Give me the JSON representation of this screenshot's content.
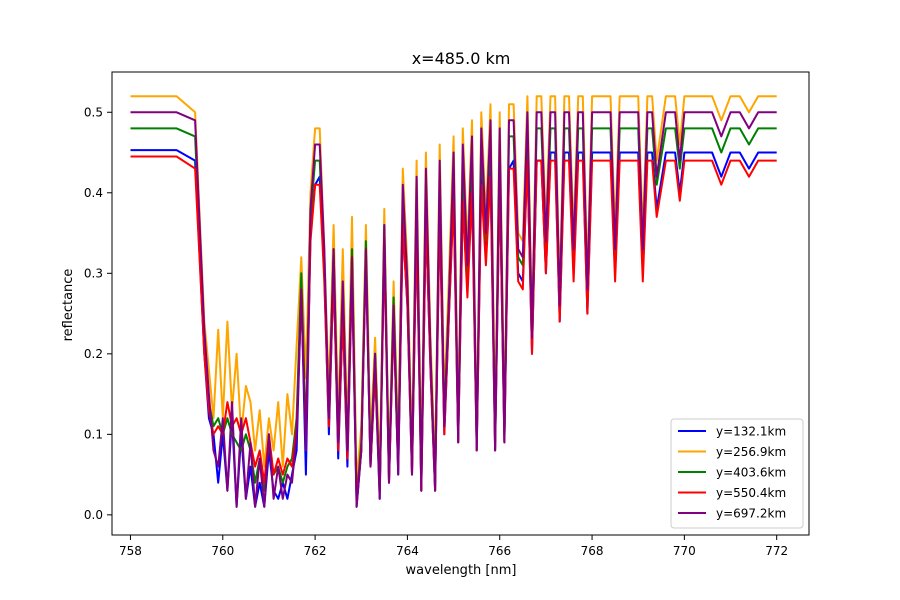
{
  "chart_data": {
    "type": "line",
    "title": "x=485.0 km",
    "xlabel": "wavelength [nm]",
    "ylabel": "reflectance",
    "xlim": [
      757.6,
      772.7
    ],
    "ylim": [
      -0.025,
      0.55
    ],
    "xticks": [
      758,
      760,
      762,
      764,
      766,
      768,
      770,
      772
    ],
    "yticks": [
      0.0,
      0.1,
      0.2,
      0.3,
      0.4,
      0.5
    ],
    "xtick_labels": [
      "758",
      "760",
      "762",
      "764",
      "766",
      "768",
      "770",
      "772"
    ],
    "ytick_labels": [
      "0.0",
      "0.1",
      "0.2",
      "0.3",
      "0.4",
      "0.5"
    ],
    "grid": false,
    "legend_position": "lower-right",
    "x": [
      758.0,
      759.0,
      759.4,
      759.6,
      759.7,
      759.8,
      759.9,
      760.0,
      760.1,
      760.2,
      760.3,
      760.4,
      760.5,
      760.6,
      760.7,
      760.8,
      760.9,
      761.0,
      761.1,
      761.2,
      761.3,
      761.4,
      761.5,
      761.6,
      761.7,
      761.8,
      761.9,
      762.0,
      762.1,
      762.2,
      762.3,
      762.4,
      762.5,
      762.6,
      762.7,
      762.8,
      762.9,
      763.0,
      763.1,
      763.2,
      763.3,
      763.4,
      763.5,
      763.6,
      763.7,
      763.8,
      763.9,
      764.0,
      764.1,
      764.2,
      764.3,
      764.4,
      764.5,
      764.6,
      764.7,
      764.8,
      764.9,
      765.0,
      765.1,
      765.2,
      765.3,
      765.4,
      765.5,
      765.6,
      765.7,
      765.8,
      765.9,
      766.0,
      766.1,
      766.2,
      766.3,
      766.4,
      766.5,
      766.6,
      766.7,
      766.8,
      766.9,
      767.0,
      767.1,
      767.2,
      767.3,
      767.4,
      767.5,
      767.6,
      767.7,
      767.8,
      767.9,
      768.0,
      768.2,
      768.4,
      768.5,
      768.6,
      768.8,
      769.0,
      769.1,
      769.2,
      769.3,
      769.4,
      769.6,
      769.8,
      769.9,
      770.0,
      770.2,
      770.4,
      770.6,
      770.8,
      771.0,
      771.2,
      771.4,
      771.6,
      771.8,
      772.0
    ],
    "series": [
      {
        "name": "y=132.1km",
        "color": "#0000ff",
        "values": [
          0.453,
          0.453,
          0.44,
          0.2,
          0.12,
          0.1,
          0.04,
          0.1,
          0.03,
          0.12,
          0.01,
          0.1,
          0.02,
          0.06,
          0.01,
          0.04,
          0.01,
          0.08,
          0.03,
          0.02,
          0.04,
          0.02,
          0.05,
          0.08,
          0.28,
          0.05,
          0.35,
          0.41,
          0.42,
          0.3,
          0.1,
          0.31,
          0.07,
          0.25,
          0.06,
          0.3,
          0.01,
          0.08,
          0.32,
          0.06,
          0.18,
          0.02,
          0.34,
          0.04,
          0.25,
          0.05,
          0.36,
          0.26,
          0.05,
          0.36,
          0.03,
          0.37,
          0.18,
          0.03,
          0.38,
          0.1,
          0.25,
          0.4,
          0.09,
          0.39,
          0.28,
          0.41,
          0.08,
          0.42,
          0.32,
          0.43,
          0.08,
          0.42,
          0.09,
          0.43,
          0.44,
          0.3,
          0.29,
          0.44,
          0.2,
          0.44,
          0.44,
          0.3,
          0.45,
          0.45,
          0.24,
          0.45,
          0.45,
          0.3,
          0.45,
          0.45,
          0.25,
          0.45,
          0.45,
          0.45,
          0.3,
          0.45,
          0.45,
          0.45,
          0.3,
          0.45,
          0.45,
          0.38,
          0.45,
          0.45,
          0.4,
          0.45,
          0.45,
          0.45,
          0.45,
          0.42,
          0.45,
          0.45,
          0.43,
          0.45,
          0.45,
          0.45
        ]
      },
      {
        "name": "y=256.9km",
        "color": "#ffa500",
        "values": [
          0.52,
          0.52,
          0.5,
          0.24,
          0.18,
          0.12,
          0.23,
          0.12,
          0.24,
          0.13,
          0.2,
          0.1,
          0.16,
          0.14,
          0.08,
          0.13,
          0.06,
          0.12,
          0.08,
          0.14,
          0.06,
          0.15,
          0.1,
          0.21,
          0.32,
          0.17,
          0.4,
          0.48,
          0.48,
          0.33,
          0.15,
          0.36,
          0.12,
          0.33,
          0.1,
          0.37,
          0.04,
          0.11,
          0.36,
          0.09,
          0.22,
          0.05,
          0.38,
          0.06,
          0.29,
          0.09,
          0.43,
          0.31,
          0.08,
          0.44,
          0.06,
          0.45,
          0.22,
          0.06,
          0.46,
          0.14,
          0.3,
          0.47,
          0.12,
          0.48,
          0.33,
          0.49,
          0.1,
          0.5,
          0.37,
          0.51,
          0.11,
          0.5,
          0.12,
          0.51,
          0.51,
          0.35,
          0.34,
          0.52,
          0.24,
          0.52,
          0.52,
          0.36,
          0.52,
          0.52,
          0.28,
          0.52,
          0.52,
          0.35,
          0.52,
          0.52,
          0.3,
          0.52,
          0.52,
          0.52,
          0.35,
          0.52,
          0.52,
          0.52,
          0.35,
          0.52,
          0.52,
          0.44,
          0.52,
          0.52,
          0.46,
          0.52,
          0.52,
          0.52,
          0.52,
          0.49,
          0.52,
          0.52,
          0.5,
          0.52,
          0.52,
          0.52
        ]
      },
      {
        "name": "y=403.6km",
        "color": "#008000",
        "values": [
          0.48,
          0.48,
          0.47,
          0.22,
          0.14,
          0.11,
          0.12,
          0.1,
          0.12,
          0.1,
          0.09,
          0.08,
          0.1,
          0.08,
          0.04,
          0.07,
          0.03,
          0.09,
          0.05,
          0.06,
          0.04,
          0.06,
          0.07,
          0.12,
          0.3,
          0.1,
          0.37,
          0.44,
          0.44,
          0.31,
          0.12,
          0.33,
          0.09,
          0.28,
          0.08,
          0.33,
          0.02,
          0.09,
          0.34,
          0.07,
          0.2,
          0.03,
          0.36,
          0.05,
          0.27,
          0.07,
          0.39,
          0.28,
          0.06,
          0.4,
          0.04,
          0.41,
          0.2,
          0.04,
          0.42,
          0.12,
          0.27,
          0.43,
          0.1,
          0.43,
          0.3,
          0.44,
          0.09,
          0.46,
          0.34,
          0.47,
          0.09,
          0.46,
          0.1,
          0.47,
          0.47,
          0.32,
          0.31,
          0.48,
          0.22,
          0.48,
          0.48,
          0.33,
          0.48,
          0.48,
          0.26,
          0.48,
          0.48,
          0.32,
          0.48,
          0.48,
          0.27,
          0.48,
          0.48,
          0.48,
          0.32,
          0.48,
          0.48,
          0.48,
          0.33,
          0.48,
          0.48,
          0.41,
          0.48,
          0.48,
          0.43,
          0.48,
          0.48,
          0.48,
          0.48,
          0.45,
          0.48,
          0.48,
          0.46,
          0.48,
          0.48,
          0.48
        ]
      },
      {
        "name": "y=550.4km",
        "color": "#ff0000",
        "values": [
          0.445,
          0.445,
          0.43,
          0.2,
          0.13,
          0.1,
          0.11,
          0.1,
          0.14,
          0.11,
          0.12,
          0.1,
          0.12,
          0.09,
          0.06,
          0.08,
          0.04,
          0.1,
          0.05,
          0.07,
          0.05,
          0.07,
          0.06,
          0.11,
          0.27,
          0.09,
          0.34,
          0.41,
          0.41,
          0.29,
          0.11,
          0.3,
          0.08,
          0.25,
          0.07,
          0.3,
          0.02,
          0.08,
          0.32,
          0.06,
          0.18,
          0.03,
          0.33,
          0.04,
          0.24,
          0.06,
          0.36,
          0.26,
          0.05,
          0.36,
          0.03,
          0.37,
          0.18,
          0.03,
          0.38,
          0.1,
          0.25,
          0.39,
          0.09,
          0.39,
          0.27,
          0.4,
          0.08,
          0.41,
          0.31,
          0.42,
          0.08,
          0.42,
          0.09,
          0.43,
          0.43,
          0.29,
          0.28,
          0.44,
          0.2,
          0.44,
          0.44,
          0.3,
          0.44,
          0.44,
          0.24,
          0.44,
          0.44,
          0.29,
          0.44,
          0.44,
          0.25,
          0.44,
          0.44,
          0.44,
          0.29,
          0.44,
          0.44,
          0.44,
          0.29,
          0.44,
          0.44,
          0.37,
          0.44,
          0.44,
          0.39,
          0.44,
          0.44,
          0.44,
          0.44,
          0.41,
          0.44,
          0.44,
          0.42,
          0.44,
          0.44,
          0.44
        ]
      },
      {
        "name": "y=697.2km",
        "color": "#800080",
        "values": [
          0.5,
          0.5,
          0.49,
          0.23,
          0.15,
          0.08,
          0.06,
          0.12,
          0.03,
          0.14,
          0.01,
          0.12,
          0.02,
          0.09,
          0.01,
          0.07,
          0.01,
          0.1,
          0.02,
          0.06,
          0.02,
          0.05,
          0.04,
          0.1,
          0.28,
          0.08,
          0.38,
          0.46,
          0.46,
          0.33,
          0.12,
          0.33,
          0.09,
          0.29,
          0.08,
          0.32,
          0.01,
          0.08,
          0.33,
          0.06,
          0.2,
          0.02,
          0.36,
          0.04,
          0.26,
          0.05,
          0.41,
          0.29,
          0.05,
          0.42,
          0.03,
          0.43,
          0.2,
          0.03,
          0.44,
          0.11,
          0.27,
          0.45,
          0.09,
          0.46,
          0.31,
          0.47,
          0.08,
          0.48,
          0.35,
          0.49,
          0.08,
          0.48,
          0.09,
          0.49,
          0.49,
          0.33,
          0.32,
          0.5,
          0.22,
          0.5,
          0.5,
          0.34,
          0.5,
          0.5,
          0.26,
          0.5,
          0.5,
          0.33,
          0.5,
          0.5,
          0.28,
          0.5,
          0.5,
          0.5,
          0.33,
          0.5,
          0.5,
          0.5,
          0.33,
          0.5,
          0.5,
          0.42,
          0.5,
          0.5,
          0.44,
          0.5,
          0.5,
          0.5,
          0.5,
          0.47,
          0.5,
          0.5,
          0.48,
          0.5,
          0.5,
          0.5
        ]
      }
    ]
  }
}
